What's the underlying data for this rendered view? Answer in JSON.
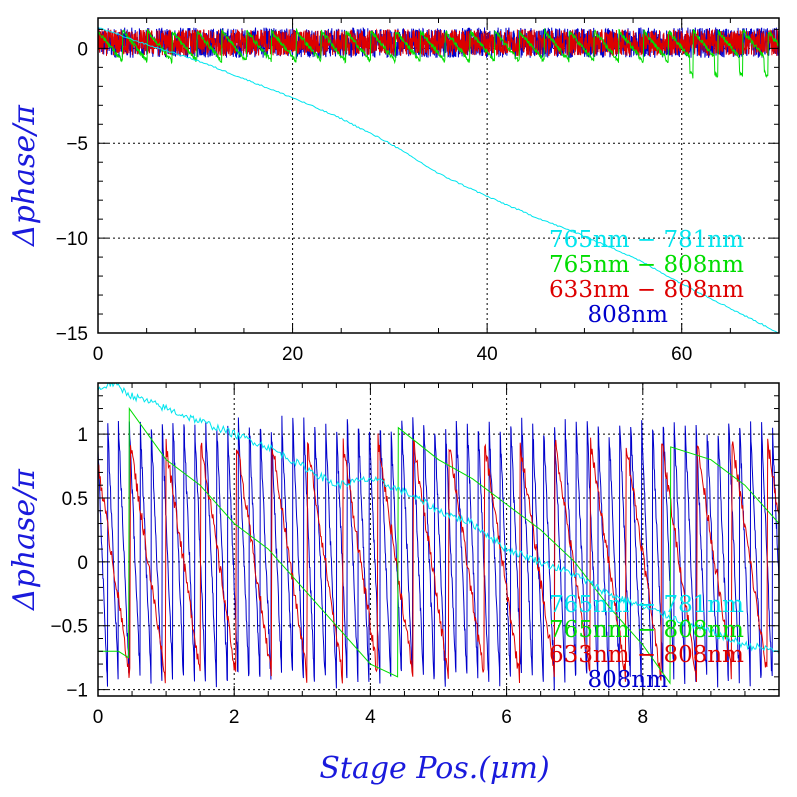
{
  "chart_data": [
    {
      "type": "line",
      "xlim": [
        0,
        70
      ],
      "ylim": [
        -15,
        1.6
      ],
      "xticks": [
        0,
        20,
        40,
        60
      ],
      "xtick_labels": [
        "0",
        "20",
        "40",
        "60"
      ],
      "yticks": [
        -15,
        -10,
        -5,
        0
      ],
      "ytick_labels": [
        "−15",
        "−10",
        "−5",
        "0"
      ],
      "ylabel": "Δphase/π",
      "grid": true,
      "legend_placement": "bottom-right",
      "series": [
        {
          "name": "765nm − 781nm",
          "color": "#00e5ee",
          "x": [
            0,
            5,
            10,
            15,
            20,
            25,
            30,
            35,
            40,
            45,
            50,
            55,
            60,
            65,
            70
          ],
          "y": [
            1.1,
            0.2,
            -0.6,
            -1.6,
            -2.6,
            -3.7,
            -5.0,
            -6.6,
            -7.8,
            -8.9,
            -9.9,
            -11.0,
            -12.4,
            -13.7,
            -15.0
          ]
        },
        {
          "name": "765nm − 808nm",
          "color": "#00dd00",
          "sawtooth_period": 2.55,
          "amplitude": 1.6
        },
        {
          "name": "633nm − 808nm",
          "color": "#dd0000",
          "sawtooth_period": 0.45,
          "amplitude": 1.4
        },
        {
          "name": "808nm",
          "color": "#0000cc",
          "sawtooth_period": 0.27,
          "amplitude": 1.6
        }
      ]
    },
    {
      "type": "line",
      "xlim": [
        0,
        10
      ],
      "ylim": [
        -1.05,
        1.4
      ],
      "xticks": [
        0,
        2,
        4,
        6,
        8
      ],
      "xtick_labels": [
        "0",
        "2",
        "4",
        "6",
        "8"
      ],
      "yticks": [
        -1,
        -0.5,
        0,
        0.5,
        1
      ],
      "ytick_labels": [
        "−1",
        "−0.5",
        "0",
        "0.5",
        "1"
      ],
      "xlabel": "Stage Pos.(μm)",
      "ylabel": "Δphase/π",
      "grid": true,
      "legend_placement": "bottom-right",
      "series": [
        {
          "name": "765nm − 781nm",
          "color": "#00e5ee",
          "x": [
            0,
            0.2,
            0.5,
            1.0,
            1.5,
            2.0,
            2.5,
            3.0,
            3.5,
            4.0,
            4.5,
            5.0,
            5.5,
            6.0,
            6.5,
            7.0,
            7.5,
            8.0,
            8.5,
            9.0,
            9.5,
            10.0
          ],
          "y": [
            1.35,
            1.4,
            1.3,
            1.2,
            1.1,
            1.0,
            0.9,
            0.75,
            0.6,
            0.65,
            0.55,
            0.4,
            0.3,
            0.1,
            0.0,
            -0.1,
            -0.25,
            -0.35,
            -0.45,
            -0.55,
            -0.65,
            -0.7
          ]
        },
        {
          "name": "765nm − 808nm",
          "color": "#00dd00",
          "x": [
            0.0,
            0.3,
            0.45,
            0.46,
            1.0,
            1.5,
            2.0,
            2.5,
            3.0,
            3.5,
            4.0,
            4.4,
            4.41,
            5.0,
            5.5,
            6.0,
            6.5,
            7.0,
            7.5,
            8.0,
            8.4,
            8.41,
            9.0,
            9.5,
            10.0
          ],
          "y": [
            -0.7,
            -0.7,
            -0.75,
            1.2,
            0.8,
            0.6,
            0.3,
            0.1,
            -0.2,
            -0.5,
            -0.8,
            -0.9,
            1.05,
            0.8,
            0.65,
            0.45,
            0.25,
            0.0,
            -0.35,
            -0.65,
            -0.95,
            0.9,
            0.8,
            0.6,
            0.3
          ]
        },
        {
          "name": "633nm − 808nm",
          "color": "#dd0000",
          "sawtooth_period": 0.52,
          "y_range": [
            -0.9,
            0.95
          ]
        },
        {
          "name": "808nm",
          "color": "#0000cc",
          "sawtooth_period": 0.16,
          "y_range": [
            -0.95,
            1.1
          ]
        }
      ]
    }
  ]
}
